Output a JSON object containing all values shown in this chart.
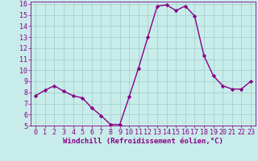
{
  "x": [
    0,
    1,
    2,
    3,
    4,
    5,
    6,
    7,
    8,
    9,
    10,
    11,
    12,
    13,
    14,
    15,
    16,
    17,
    18,
    19,
    20,
    21,
    22,
    23
  ],
  "y": [
    7.7,
    8.2,
    8.6,
    8.1,
    7.7,
    7.5,
    6.6,
    5.9,
    5.1,
    5.1,
    7.6,
    10.2,
    13.0,
    15.8,
    15.9,
    15.4,
    15.8,
    14.9,
    11.3,
    9.5,
    8.6,
    8.3,
    8.3,
    9.0
  ],
  "line_color": "#880088",
  "marker": "D",
  "markersize": 2.2,
  "linewidth": 1.0,
  "bg_color": "#c8ecea",
  "grid_color": "#a0ccca",
  "xlabel": "Windchill (Refroidissement éolien,°C)",
  "xlim": [
    -0.5,
    23.5
  ],
  "ylim": [
    5,
    16.2
  ],
  "xticks": [
    0,
    1,
    2,
    3,
    4,
    5,
    6,
    7,
    8,
    9,
    10,
    11,
    12,
    13,
    14,
    15,
    16,
    17,
    18,
    19,
    20,
    21,
    22,
    23
  ],
  "yticks": [
    5,
    6,
    7,
    8,
    9,
    10,
    11,
    12,
    13,
    14,
    15,
    16
  ],
  "tick_fontsize": 6.0,
  "xlabel_fontsize": 6.5
}
